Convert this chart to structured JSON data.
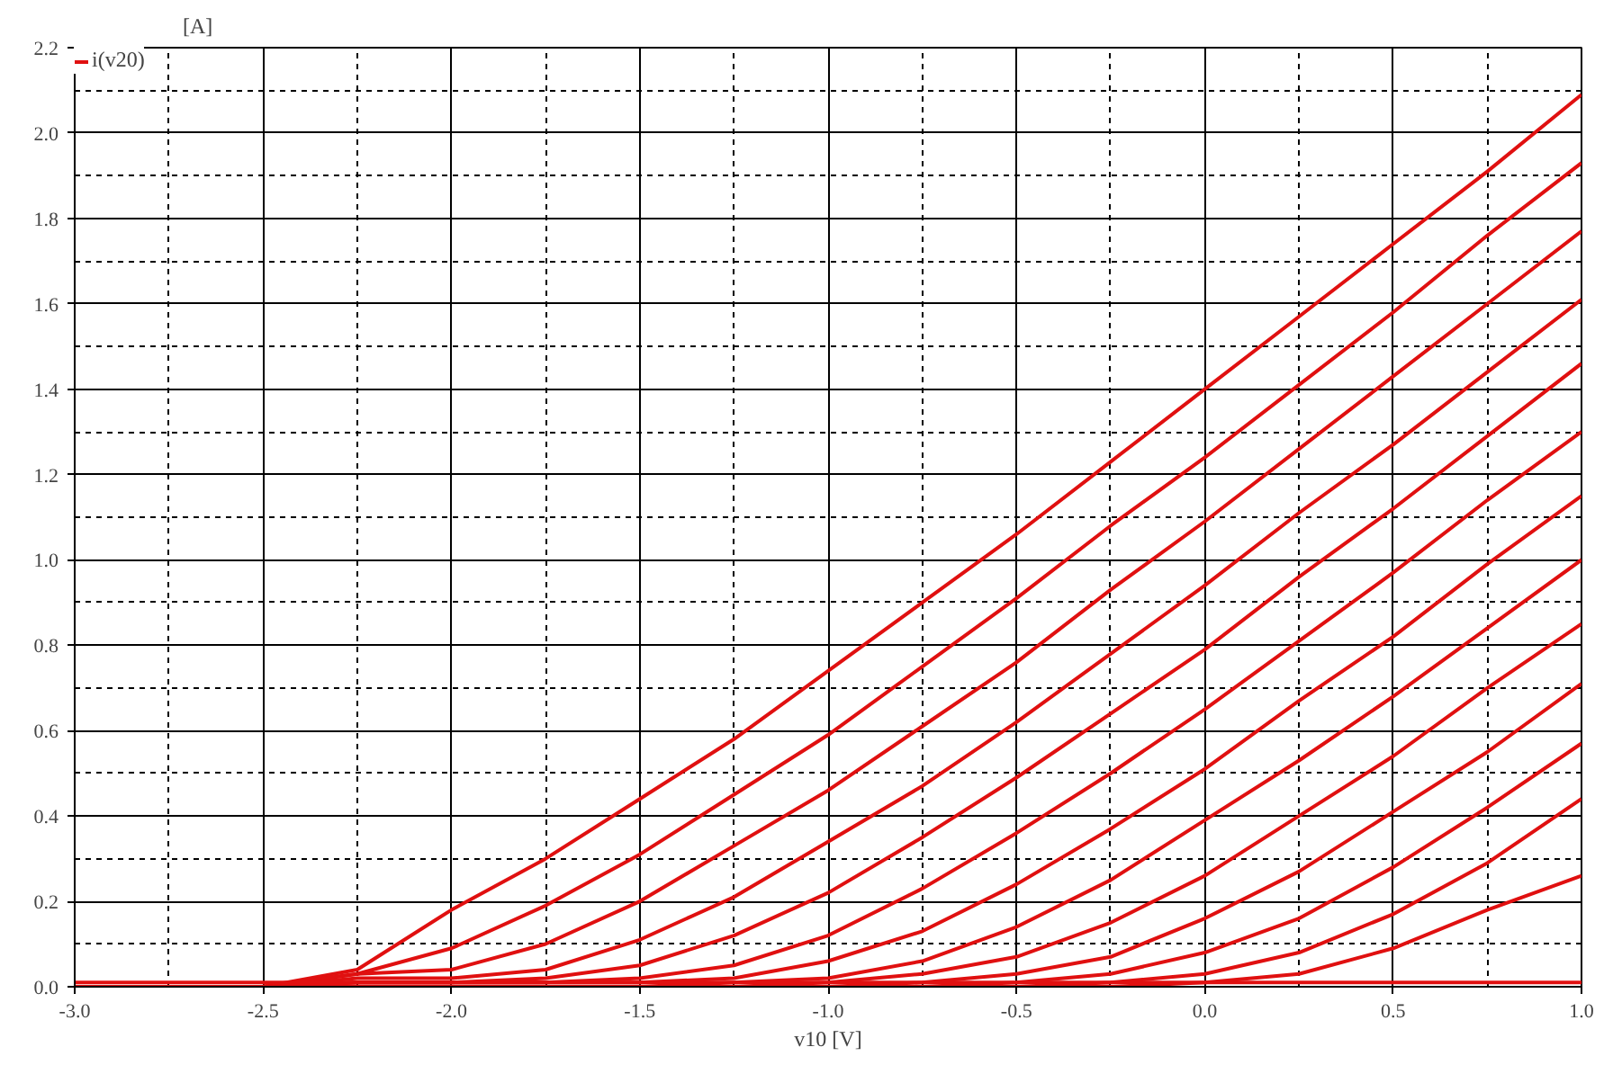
{
  "chart_data": {
    "type": "line",
    "xlabel": "v10 [V]",
    "ylabel": "[A]",
    "legend": "top left",
    "grid": true,
    "line_style": "solid",
    "x": [
      -3,
      -2.75,
      -2.5,
      -2.25,
      -2,
      -1.75,
      -1.5,
      -1.25,
      -1,
      -0.75,
      -0.5,
      -0.25,
      0,
      0.25,
      0.5,
      0.75,
      1
    ],
    "xlim": [
      -3,
      1
    ],
    "ylim": [
      0,
      2.2
    ],
    "xticks": [
      {
        "value": -3,
        "label": "-3.0"
      },
      {
        "value": -2.5,
        "label": "-2.5"
      },
      {
        "value": -2,
        "label": "-2.0"
      },
      {
        "value": -1.5,
        "label": "-1.5"
      },
      {
        "value": -1,
        "label": "-1.0"
      },
      {
        "value": -0.5,
        "label": "-0.5"
      },
      {
        "value": 0,
        "label": "0.0"
      },
      {
        "value": 0.5,
        "label": "0.5"
      },
      {
        "value": 1,
        "label": "1.0"
      }
    ],
    "yticks": [
      {
        "value": 0,
        "label": "0.0"
      },
      {
        "value": 0.2,
        "label": "0.2"
      },
      {
        "value": 0.4,
        "label": "0.4"
      },
      {
        "value": 0.6,
        "label": "0.6"
      },
      {
        "value": 0.8,
        "label": "0.8"
      },
      {
        "value": 1,
        "label": "1.0"
      },
      {
        "value": 1.2,
        "label": "1.2"
      },
      {
        "value": 1.4,
        "label": "1.4"
      },
      {
        "value": 1.6,
        "label": "1.6"
      },
      {
        "value": 1.8,
        "label": "1.8"
      },
      {
        "value": 2,
        "label": "2.0"
      },
      {
        "value": 2.2,
        "label": "2.2"
      }
    ],
    "series": [
      {
        "name": "i(v20)",
        "color": "#e01010",
        "values": [
          0,
          0,
          0,
          0.04,
          0.18,
          0.3,
          0.44,
          0.58,
          0.74,
          0.9,
          1.06,
          1.23,
          1.4,
          1.57,
          1.74,
          1.91,
          2.09
        ]
      },
      {
        "color": "#e01010",
        "values": [
          0,
          0,
          0,
          0.03,
          0.09,
          0.19,
          0.31,
          0.45,
          0.59,
          0.75,
          0.91,
          1.08,
          1.24,
          1.41,
          1.58,
          1.76,
          1.93
        ]
      },
      {
        "color": "#e01010",
        "values": [
          0,
          0,
          0,
          0.03,
          0.04,
          0.1,
          0.2,
          0.33,
          0.46,
          0.61,
          0.76,
          0.93,
          1.09,
          1.26,
          1.43,
          1.6,
          1.77
        ]
      },
      {
        "color": "#e01010",
        "values": [
          0,
          0,
          0,
          0.02,
          0.02,
          0.04,
          0.11,
          0.21,
          0.34,
          0.47,
          0.62,
          0.78,
          0.94,
          1.11,
          1.27,
          1.44,
          1.61
        ]
      },
      {
        "color": "#e01010",
        "values": [
          0,
          0,
          0,
          0.01,
          0.01,
          0.02,
          0.05,
          0.12,
          0.22,
          0.35,
          0.49,
          0.64,
          0.79,
          0.96,
          1.12,
          1.29,
          1.46
        ]
      },
      {
        "color": "#e01010",
        "values": [
          0,
          0,
          0,
          0.01,
          0.01,
          0.01,
          0.02,
          0.05,
          0.12,
          0.23,
          0.36,
          0.5,
          0.65,
          0.81,
          0.97,
          1.14,
          1.3
        ]
      },
      {
        "color": "#e01010",
        "values": [
          0,
          0,
          0,
          0.01,
          0.01,
          0.01,
          0.01,
          0.02,
          0.06,
          0.13,
          0.24,
          0.37,
          0.51,
          0.67,
          0.82,
          0.99,
          1.15
        ]
      },
      {
        "color": "#e01010",
        "values": [
          0,
          0,
          0,
          0,
          0,
          0,
          0,
          0.01,
          0.02,
          0.06,
          0.14,
          0.25,
          0.39,
          0.53,
          0.68,
          0.84,
          1.0
        ]
      },
      {
        "color": "#e01010",
        "values": [
          0,
          0,
          0,
          0,
          0,
          0,
          0,
          0,
          0.01,
          0.03,
          0.07,
          0.15,
          0.26,
          0.4,
          0.54,
          0.7,
          0.85
        ]
      },
      {
        "color": "#e01010",
        "values": [
          0,
          0,
          0,
          0,
          0,
          0,
          0,
          0,
          0,
          0.01,
          0.03,
          0.07,
          0.16,
          0.27,
          0.41,
          0.55,
          0.71
        ]
      },
      {
        "color": "#e01010",
        "values": [
          0,
          0,
          0,
          0,
          0,
          0,
          0,
          0,
          0,
          0,
          0.01,
          0.03,
          0.08,
          0.16,
          0.28,
          0.42,
          0.57
        ]
      },
      {
        "color": "#e01010",
        "values": [
          0,
          0,
          0,
          0,
          0,
          0,
          0,
          0,
          0,
          0,
          0,
          0.01,
          0.03,
          0.08,
          0.17,
          0.29,
          0.44
        ]
      },
      {
        "color": "#e01010",
        "values": [
          0,
          0,
          0,
          0,
          0,
          0,
          0,
          0,
          0,
          0,
          0,
          0,
          0.01,
          0.03,
          0.09,
          0.18,
          0.26
        ]
      },
      {
        "color": "#e01010",
        "values": [
          0.01,
          0.01,
          0.01,
          0.01,
          0.01,
          0.01,
          0.01,
          0.01,
          0.01,
          0.01,
          0.01,
          0.01,
          0.01,
          0.01,
          0.01,
          0.01,
          0.01
        ]
      }
    ]
  }
}
